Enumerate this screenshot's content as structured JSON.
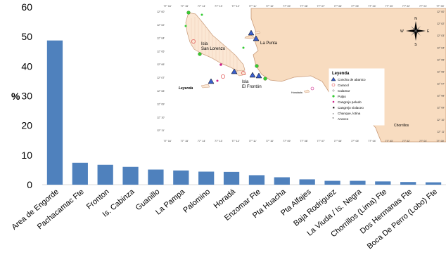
{
  "chart_data": {
    "type": "bar",
    "title": "",
    "xlabel": "",
    "ylabel": "%",
    "ylim": [
      0,
      60
    ],
    "yticks": [
      0,
      10,
      20,
      30,
      40,
      50,
      60
    ],
    "grid": false,
    "bar_color": "#4f81bd",
    "categories": [
      "Area de Engorde",
      "Pachacamac Fte",
      "Fronton",
      "Is. Cabinza",
      "Guanillo",
      "La Pampa",
      "Palomino",
      "Horadá",
      "Enzomar Fte",
      "Pta Huacha",
      "Pta Alfajes",
      "Baja Rodriguez",
      "La Viuda / Is. Negra",
      "Chorrillos (Lima) Fte",
      "Dos Hermanas Fte",
      "Boca De Perro (Lobo) Fte"
    ],
    "values": [
      48.7,
      7.4,
      6.7,
      6.0,
      5.1,
      4.8,
      4.4,
      4.3,
      3.2,
      2.5,
      1.8,
      1.3,
      1.3,
      1.1,
      0.9,
      0.8
    ]
  },
  "map": {
    "labels": {
      "isla_san_lorenzo": [
        "Isla",
        "San Lorenzo"
      ],
      "la_punta": "La Punta",
      "isla_el_fronton": [
        "Isla",
        "El Frontón"
      ],
      "leyenda_small": "Leyenda",
      "horadada": "Horadada",
      "chorrillos": "Chorrillos"
    },
    "compass": {
      "n": "N",
      "s": "S",
      "e": "E",
      "w": "W"
    },
    "coords_top": [
      "77° 16'",
      "77° 15'",
      "77° 14'",
      "77° 13'",
      "77° 12'",
      "77° 11'",
      "77° 10'",
      "77° 09'",
      "77° 08'",
      "77° 07'",
      "77° 06'",
      "77° 05'",
      "77° 04'",
      "77° 03'",
      "77° 02'",
      "77° 01'",
      "77° 00'"
    ],
    "coords_bottom": [
      "77° 16'",
      "77° 15'",
      "77° 14'",
      "77° 13'",
      "77° 12'",
      "77° 11'",
      "77° 10'",
      "77° 09'",
      "77° 08'",
      "77° 07'",
      "77° 06'",
      "77° 05'",
      "77° 04'",
      "77° 03'",
      "77° 02'",
      "77° 01'",
      "77° 00'"
    ],
    "coords_left": [
      "12° 00'",
      "12° 02'",
      "12° 04'",
      "12° 05'",
      "12° 06'",
      "12° 07'",
      "12° 08'",
      "12° 09'",
      "12° 10'",
      "12° 11'"
    ],
    "coords_right": [
      "12° 00'",
      "12° 02'",
      "12° 03'",
      "12° 04'",
      "12° 05'",
      "12° 06'",
      "12° 07'",
      "12° 08'",
      "12° 09'",
      "12° 10'",
      "12° 11'"
    ],
    "legend": {
      "title": "Leyenda",
      "items": [
        "Concha de abanico",
        "Caracol",
        "Calamar",
        "Pulpo",
        "Cangrejo peludo",
        "Cangrejo violaceo",
        "Chanque, lotina",
        "Ancoco"
      ]
    },
    "colors": {
      "land": "#f8dcc0",
      "coast": "#c99a78",
      "triangle": "#3a5fcd",
      "caracol": "#e05050",
      "pulpo": "#33cc33",
      "peludo": "#cc2288"
    }
  }
}
